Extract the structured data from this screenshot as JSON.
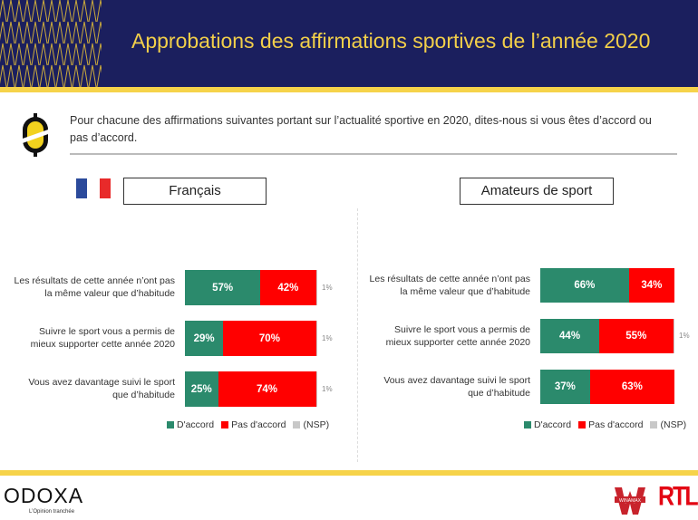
{
  "header": {
    "title": "Approbations des affirmations sportives de l’année 2020"
  },
  "question": "Pour chacune des affirmations suivantes portant sur l’actualité sportive en 2020, dites-nous si vous êtes d’accord ou pas d’accord.",
  "colors": {
    "agree": "#2b8a6c",
    "disagree": "#ff0000",
    "nsp": "#c8c8c8",
    "navy": "#1b1f5e",
    "yellow": "#f6d34a"
  },
  "footer": {
    "brand": "ODOXA",
    "tagline": "L’Opinion tranchée",
    "partner1": "WINAMAX",
    "partner2": "RTL"
  },
  "chart_data": [
    {
      "type": "bar",
      "stacked": true,
      "orientation": "horizontal",
      "title": "Français",
      "categories": [
        "Les résultats de cette année n’ont pas la même valeur que d’habitude",
        "Suivre le sport vous a permis de mieux supporter cette année 2020",
        "Vous avez davantage suivi le sport que d’habitude"
      ],
      "series": [
        {
          "name": "D'accord",
          "values": [
            57,
            29,
            25
          ]
        },
        {
          "name": "Pas d'accord",
          "values": [
            42,
            70,
            74
          ]
        },
        {
          "name": "(NSP)",
          "values": [
            1,
            1,
            1
          ]
        }
      ],
      "legend": "bottom",
      "xlim": [
        0,
        100
      ]
    },
    {
      "type": "bar",
      "stacked": true,
      "orientation": "horizontal",
      "title": "Amateurs de sport",
      "categories": [
        "Les résultats de cette année n’ont pas la même valeur que d’habitude",
        "Suivre le sport vous a permis de mieux supporter cette année 2020",
        "Vous avez davantage suivi le sport que d’habitude"
      ],
      "series": [
        {
          "name": "D'accord",
          "values": [
            66,
            44,
            37
          ]
        },
        {
          "name": "Pas d'accord",
          "values": [
            34,
            55,
            63
          ]
        },
        {
          "name": "(NSP)",
          "values": [
            0,
            1,
            0
          ]
        }
      ],
      "legend": "bottom",
      "xlim": [
        0,
        100
      ]
    }
  ]
}
